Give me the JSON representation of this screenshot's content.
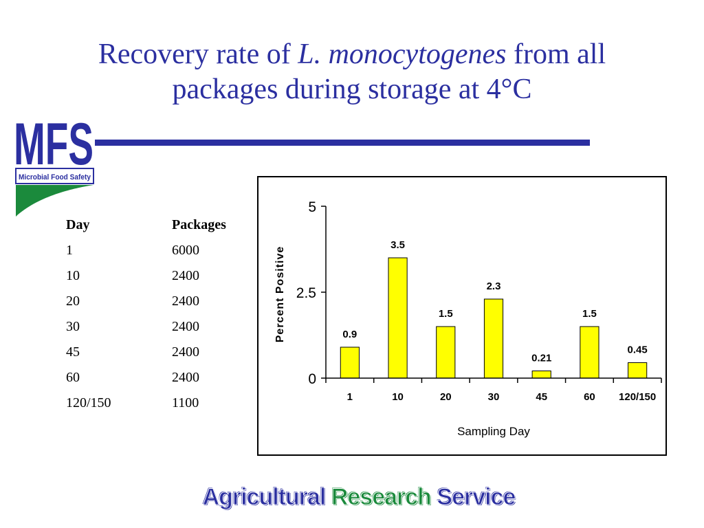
{
  "slide": {
    "title_part1": "Recovery rate of ",
    "title_species": "L. monocytogenes",
    "title_part2": " from all",
    "title_line2": "packages during storage at 4°C",
    "accent_color": "#2b2fa0",
    "green_color": "#1b8a3c"
  },
  "logo": {
    "letters": "MFS",
    "subtitle": "Microbial Food Safety"
  },
  "table": {
    "headers": [
      "Day",
      "Packages"
    ],
    "rows": [
      [
        "1",
        "6000"
      ],
      [
        "10",
        "2400"
      ],
      [
        "20",
        "2400"
      ],
      [
        "30",
        "2400"
      ],
      [
        "45",
        "2400"
      ],
      [
        "60",
        "2400"
      ],
      [
        "120/150",
        "1100"
      ]
    ]
  },
  "chart_data": {
    "type": "bar",
    "categories": [
      "1",
      "10",
      "20",
      "30",
      "45",
      "60",
      "120/150"
    ],
    "values": [
      0.9,
      3.5,
      1.5,
      2.3,
      0.21,
      1.5,
      0.45
    ],
    "data_labels": [
      "0.9",
      "3.5",
      "1.5",
      "2.3",
      "0.21",
      "1.5",
      "0.45"
    ],
    "xlabel": "Sampling Day",
    "ylabel": "Percent Positive",
    "ylim": [
      0,
      5
    ],
    "yticks": [
      "0",
      "2.5",
      "5"
    ],
    "ytick_values": [
      0,
      2.5,
      5
    ],
    "grid": false,
    "bar_color": "#ffff00"
  },
  "footer": {
    "word1": "Agricultural",
    "word2": "Research",
    "word3": "Service"
  }
}
